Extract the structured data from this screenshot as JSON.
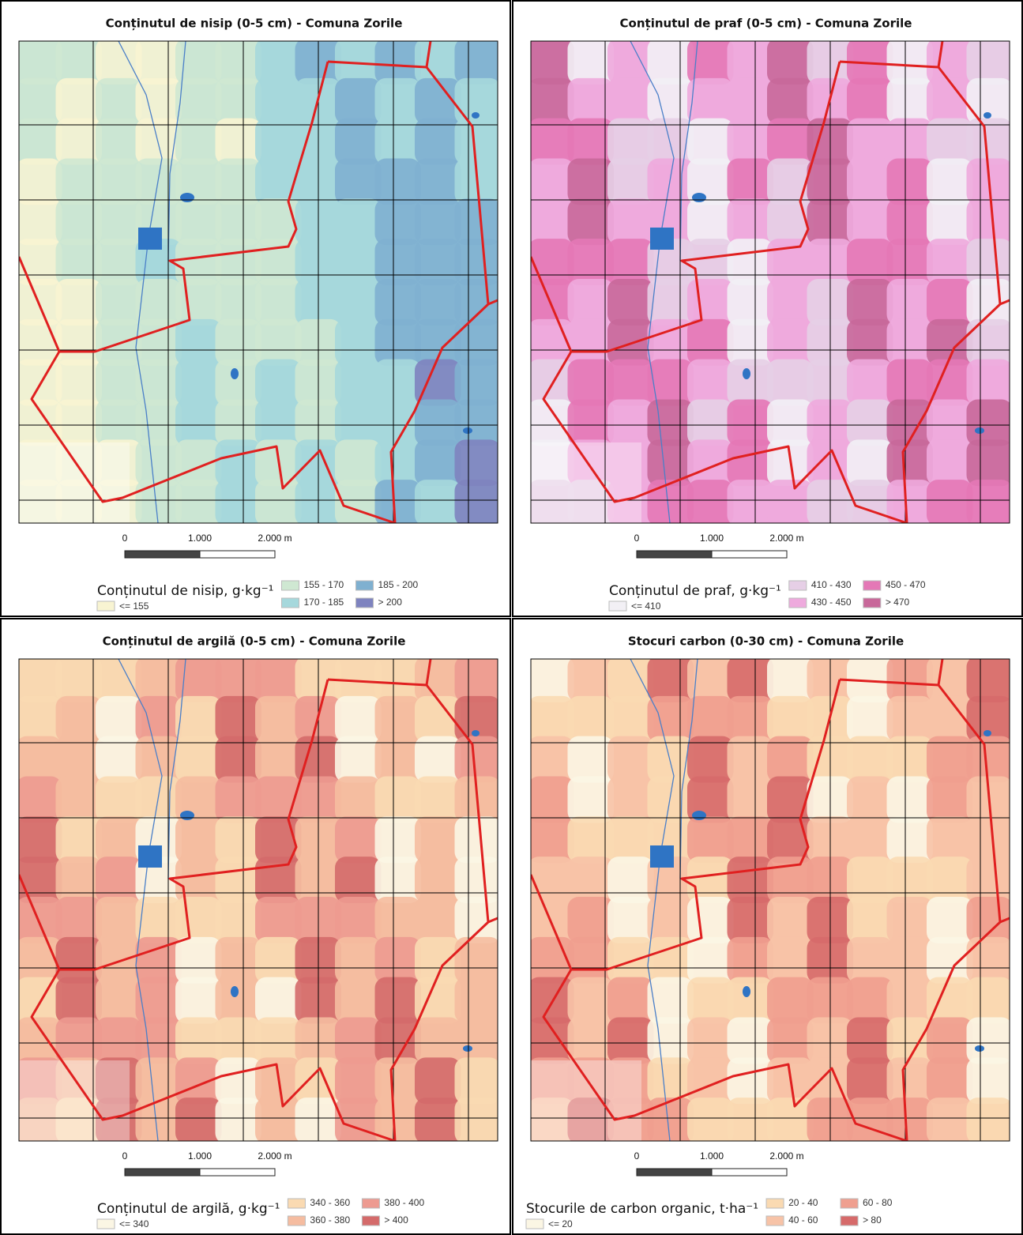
{
  "panels": [
    {
      "title": "Conținutul de nisip (0-5 cm) - Comuna Zorile",
      "scale_labels": [
        "0",
        "1.000",
        "2.000 m"
      ],
      "legend": {
        "title": "Conținutul de nisip, g·kg⁻¹",
        "classes": [
          {
            "label": "<= 155",
            "color": "#f8f4d2"
          },
          {
            "label": "155 - 170",
            "color": "#cfe8d2"
          },
          {
            "label": "170 - 185",
            "color": "#a6d8dc"
          },
          {
            "label": "185 - 200",
            "color": "#7fb0d0"
          },
          {
            "label": "> 200",
            "color": "#7e83bf"
          }
        ]
      }
    },
    {
      "title": "Conținutul de praf (0-5 cm) - Comuna Zorile",
      "scale_labels": [
        "0",
        "1.000",
        "2.000 m"
      ],
      "legend": {
        "title": "Conținutul de praf, g·kg⁻¹",
        "classes": [
          {
            "label": "<= 410",
            "color": "#f2f0f5"
          },
          {
            "label": "410 - 430",
            "color": "#e6cfe6"
          },
          {
            "label": "430 - 450",
            "color": "#eeaadd"
          },
          {
            "label": "450 - 470",
            "color": "#e478b6"
          },
          {
            "label": "> 470",
            "color": "#c8689a"
          }
        ]
      }
    },
    {
      "title": "Conținutul de argilă (0-5 cm) - Comuna Zorile",
      "scale_labels": [
        "0",
        "1.000",
        "2.000 m"
      ],
      "legend": {
        "title": "Conținutul de argilă, g·kg⁻¹",
        "classes": [
          {
            "label": "<= 340",
            "color": "#fbf6e4"
          },
          {
            "label": "340 - 360",
            "color": "#fadab2"
          },
          {
            "label": "360 - 380",
            "color": "#f5bca0"
          },
          {
            "label": "380 - 400",
            "color": "#ed9a90"
          },
          {
            "label": "> 400",
            "color": "#d46a6a"
          }
        ]
      }
    },
    {
      "title": "Stocuri carbon (0-30 cm) - Comuna Zorile",
      "scale_labels": [
        "0",
        "1.000",
        "2.000 m"
      ],
      "legend": {
        "title": "Stocurile de carbon organic, t·ha⁻¹",
        "classes": [
          {
            "label": "<= 20",
            "color": "#fbf6e4"
          },
          {
            "label": "20 - 40",
            "color": "#fadab2"
          },
          {
            "label": "40 - 60",
            "color": "#f7c3a7"
          },
          {
            "label": "60 - 80",
            "color": "#ef9f8f"
          },
          {
            "label": "> 80",
            "color": "#d66a6a"
          }
        ]
      }
    }
  ]
}
